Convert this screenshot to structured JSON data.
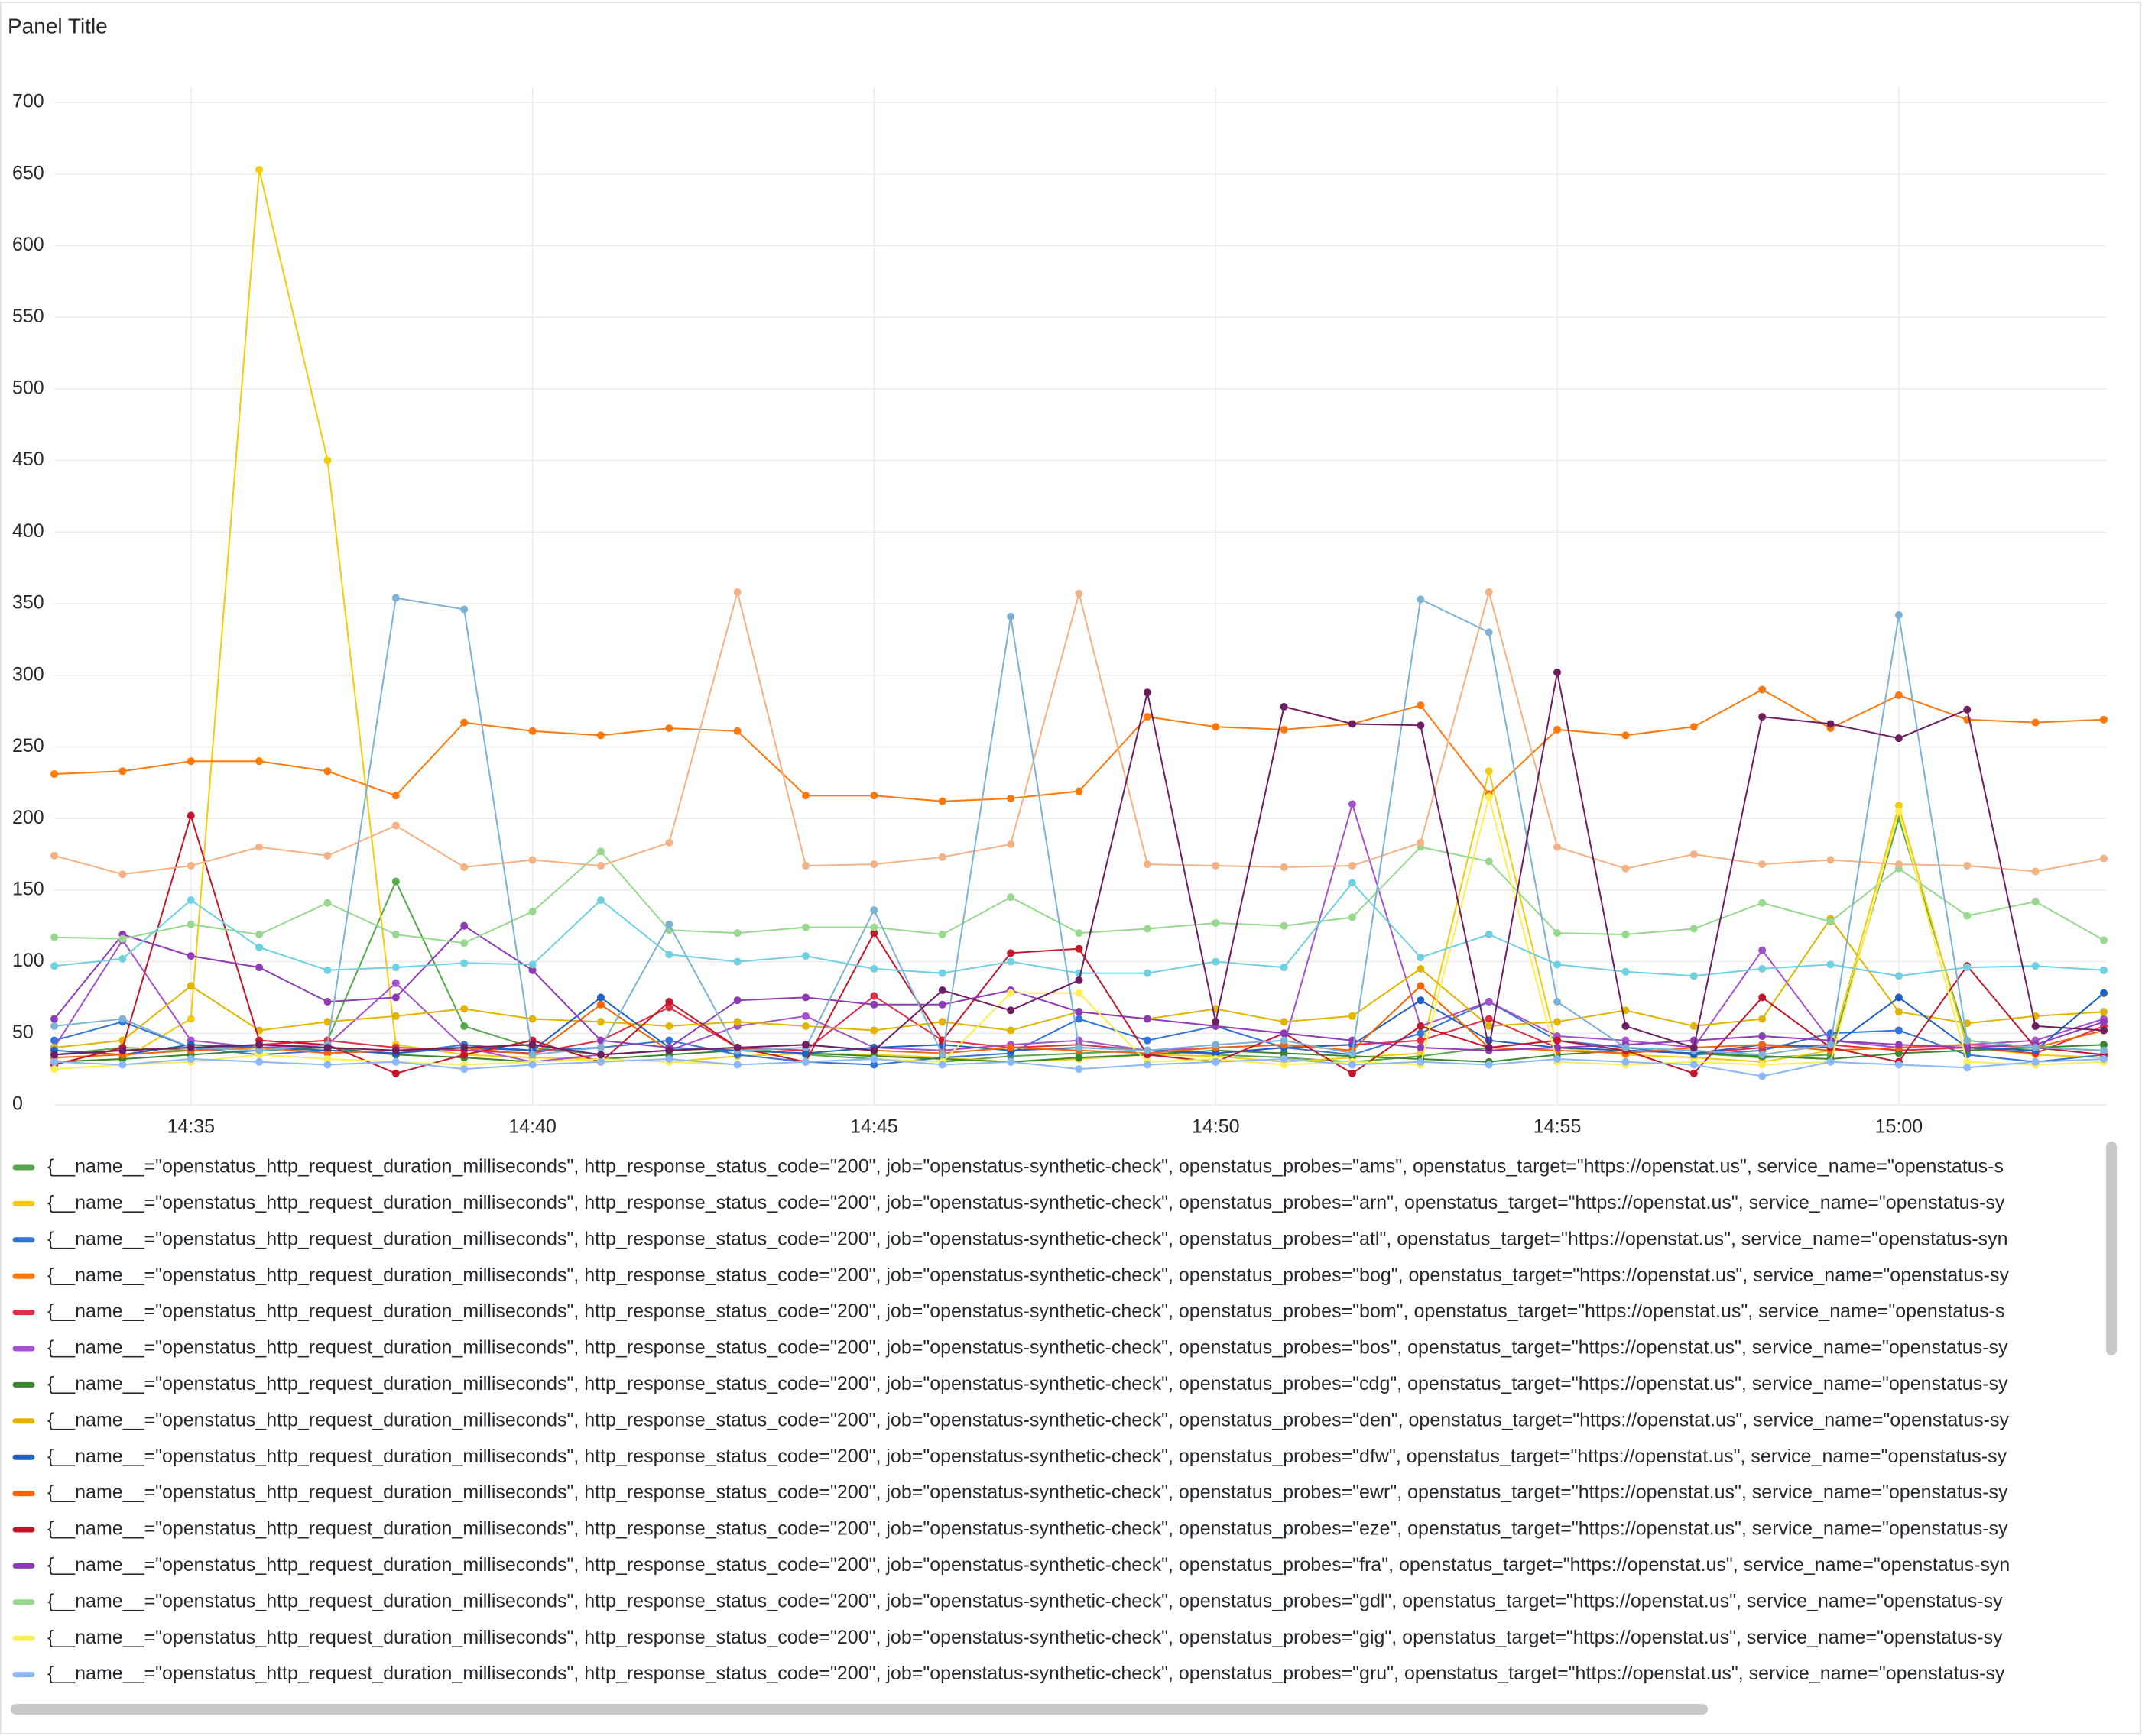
{
  "chart_data": {
    "type": "line",
    "title": "Panel Title",
    "x": [
      "14:33",
      "14:34",
      "14:35",
      "14:36",
      "14:37",
      "14:38",
      "14:39",
      "14:40",
      "14:41",
      "14:42",
      "14:43",
      "14:44",
      "14:45",
      "14:46",
      "14:47",
      "14:48",
      "14:49",
      "14:50",
      "14:51",
      "14:52",
      "14:53",
      "14:54",
      "14:55",
      "14:56",
      "14:57",
      "14:58",
      "14:59",
      "15:00",
      "15:01",
      "15:02",
      "15:03"
    ],
    "xticks": [
      "14:35",
      "14:40",
      "14:45",
      "14:50",
      "14:55",
      "15:00"
    ],
    "ylim": [
      0,
      700
    ],
    "yticks": [
      0,
      50,
      100,
      150,
      200,
      250,
      300,
      350,
      400,
      450,
      500,
      550,
      600,
      650,
      700
    ],
    "grid": true,
    "legend": "bottom",
    "series": [
      {
        "name": "{__name__=\"openstatus_http_request_duration_milliseconds\", http_response_status_code=\"200\", job=\"openstatus-synthetic-check\", openstatus_probes=\"ams\", openstatus_target=\"https://openstat.us\", service_name=\"openstatus-s",
        "color": "#56A64B",
        "values": [
          35,
          40,
          38,
          42,
          45,
          156,
          55,
          40,
          35,
          38,
          40,
          35,
          32,
          30,
          34,
          36,
          38,
          35,
          33,
          30,
          34,
          40,
          45,
          38,
          36,
          33,
          35,
          200,
          45,
          40,
          38
        ]
      },
      {
        "name": "{__name__=\"openstatus_http_request_duration_milliseconds\", http_response_status_code=\"200\", job=\"openstatus-synthetic-check\", openstatus_probes=\"arn\", openstatus_target=\"https://openstat.us\", service_name=\"openstatus-sy",
        "color": "#F2CC0C",
        "values": [
          30,
          32,
          60,
          653,
          450,
          42,
          35,
          33,
          32,
          30,
          34,
          36,
          35,
          33,
          30,
          32,
          35,
          34,
          30,
          33,
          36,
          233,
          40,
          35,
          33,
          30,
          38,
          209,
          40,
          35,
          33
        ]
      },
      {
        "name": "{__name__=\"openstatus_http_request_duration_milliseconds\", http_response_status_code=\"200\", job=\"openstatus-synthetic-check\", openstatus_probes=\"atl\", openstatus_target=\"https://openstat.us\", service_name=\"openstatus-syn",
        "color": "#3274D9",
        "values": [
          45,
          58,
          40,
          35,
          38,
          36,
          42,
          38,
          40,
          45,
          35,
          30,
          28,
          33,
          36,
          60,
          45,
          55,
          40,
          35,
          50,
          72,
          45,
          40,
          35,
          38,
          50,
          52,
          35,
          30,
          35
        ]
      },
      {
        "name": "{__name__=\"openstatus_http_request_duration_milliseconds\", http_response_status_code=\"200\", job=\"openstatus-synthetic-check\", openstatus_probes=\"bog\", openstatus_target=\"https://openstat.us\", service_name=\"openstatus-sy",
        "color": "#FF780A",
        "values": [
          231,
          233,
          240,
          240,
          233,
          216,
          267,
          261,
          258,
          263,
          261,
          216,
          216,
          212,
          214,
          219,
          271,
          264,
          262,
          266,
          279,
          217,
          262,
          258,
          264,
          290,
          263,
          286,
          269,
          267,
          269
        ]
      },
      {
        "name": "{__name__=\"openstatus_http_request_duration_milliseconds\", http_response_status_code=\"200\", job=\"openstatus-synthetic-check\", openstatus_probes=\"bom\", openstatus_target=\"https://openstat.us\", service_name=\"openstatus-s",
        "color": "#E02F44",
        "values": [
          35,
          38,
          40,
          42,
          45,
          40,
          38,
          36,
          45,
          68,
          40,
          38,
          76,
          45,
          40,
          42,
          38,
          36,
          40,
          42,
          45,
          60,
          40,
          38,
          36,
          40,
          42,
          38,
          40,
          36,
          55
        ]
      },
      {
        "name": "{__name__=\"openstatus_http_request_duration_milliseconds\", http_response_status_code=\"200\", job=\"openstatus-synthetic-check\", openstatus_probes=\"bos\", openstatus_target=\"https://openstat.us\", service_name=\"openstatus-sy",
        "color": "#A352CC",
        "values": [
          40,
          115,
          45,
          40,
          42,
          85,
          40,
          30,
          35,
          38,
          55,
          62,
          40,
          38,
          42,
          45,
          38,
          40,
          42,
          210,
          55,
          72,
          48,
          45,
          40,
          108,
          45,
          40,
          42,
          45,
          60
        ]
      },
      {
        "name": "{__name__=\"openstatus_http_request_duration_milliseconds\", http_response_status_code=\"200\", job=\"openstatus-synthetic-check\", openstatus_probes=\"cdg\", openstatus_target=\"https://openstat.us\", service_name=\"openstatus-sy",
        "color": "#37872D",
        "values": [
          30,
          32,
          35,
          38,
          40,
          35,
          33,
          30,
          32,
          35,
          38,
          36,
          34,
          32,
          30,
          33,
          35,
          38,
          36,
          34,
          32,
          30,
          35,
          38,
          36,
          34,
          32,
          36,
          38,
          40,
          42
        ]
      },
      {
        "name": "{__name__=\"openstatus_http_request_duration_milliseconds\", http_response_status_code=\"200\", job=\"openstatus-synthetic-check\", openstatus_probes=\"den\", openstatus_target=\"https://openstat.us\", service_name=\"openstatus-sy",
        "color": "#E0B400",
        "values": [
          40,
          45,
          83,
          52,
          58,
          62,
          67,
          60,
          58,
          55,
          58,
          55,
          52,
          58,
          52,
          65,
          60,
          67,
          58,
          62,
          95,
          55,
          58,
          66,
          55,
          60,
          130,
          65,
          57,
          62,
          65
        ]
      },
      {
        "name": "{__name__=\"openstatus_http_request_duration_milliseconds\", http_response_status_code=\"200\", job=\"openstatus-synthetic-check\", openstatus_probes=\"dfw\", openstatus_target=\"https://openstat.us\", service_name=\"openstatus-sy",
        "color": "#1F60C4",
        "values": [
          38,
          35,
          42,
          40,
          38,
          36,
          40,
          38,
          75,
          40,
          38,
          36,
          40,
          42,
          38,
          40,
          38,
          36,
          40,
          42,
          73,
          45,
          40,
          38,
          36,
          42,
          40,
          75,
          40,
          38,
          78
        ]
      },
      {
        "name": "{__name__=\"openstatus_http_request_duration_milliseconds\", http_response_status_code=\"200\", job=\"openstatus-synthetic-check\", openstatus_probes=\"ewr\", openstatus_target=\"https://openstat.us\", service_name=\"openstatus-sy",
        "color": "#FA6400",
        "values": [
          33,
          35,
          38,
          40,
          36,
          38,
          40,
          35,
          70,
          38,
          40,
          42,
          38,
          36,
          40,
          38,
          36,
          40,
          42,
          38,
          83,
          40,
          38,
          36,
          40,
          42,
          38,
          40,
          42,
          40,
          52
        ]
      },
      {
        "name": "{__name__=\"openstatus_http_request_duration_milliseconds\", http_response_status_code=\"200\", job=\"openstatus-synthetic-check\", openstatus_probes=\"eze\", openstatus_target=\"https://openstat.us\", service_name=\"openstatus-sy",
        "color": "#C4162A",
        "values": [
          28,
          40,
          202,
          45,
          42,
          22,
          35,
          45,
          30,
          72,
          40,
          30,
          120,
          45,
          106,
          109,
          35,
          30,
          50,
          22,
          55,
          40,
          45,
          38,
          22,
          75,
          40,
          30,
          97,
          40,
          35
        ]
      },
      {
        "name": "{__name__=\"openstatus_http_request_duration_milliseconds\", http_response_status_code=\"200\", job=\"openstatus-synthetic-check\", openstatus_probes=\"fra\", openstatus_target=\"https://openstat.us\", service_name=\"openstatus-syn",
        "color": "#8F3BB8",
        "values": [
          60,
          119,
          104,
          96,
          72,
          75,
          125,
          94,
          45,
          40,
          73,
          75,
          70,
          70,
          80,
          65,
          60,
          55,
          50,
          45,
          40,
          38,
          40,
          42,
          45,
          48,
          45,
          42,
          40,
          42,
          58
        ]
      },
      {
        "name": "{__name__=\"openstatus_http_request_duration_milliseconds\", http_response_status_code=\"200\", job=\"openstatus-synthetic-check\", openstatus_probes=\"gdl\", openstatus_target=\"https://openstat.us\", service_name=\"openstatus-sy",
        "color": "#96D98D",
        "values": [
          117,
          116,
          126,
          119,
          141,
          119,
          113,
          135,
          177,
          122,
          120,
          124,
          124,
          119,
          145,
          120,
          123,
          127,
          125,
          131,
          180,
          170,
          120,
          119,
          123,
          141,
          128,
          165,
          132,
          142,
          115
        ]
      },
      {
        "name": "{__name__=\"openstatus_http_request_duration_milliseconds\", http_response_status_code=\"200\", job=\"openstatus-synthetic-check\", openstatus_probes=\"gig\", openstatus_target=\"https://openstat.us\", service_name=\"openstatus-sy",
        "color": "#FFEE52",
        "values": [
          25,
          28,
          30,
          35,
          32,
          30,
          28,
          30,
          32,
          30,
          28,
          30,
          32,
          30,
          78,
          78,
          30,
          32,
          28,
          30,
          28,
          215,
          30,
          28,
          30,
          28,
          30,
          205,
          30,
          28,
          30
        ]
      },
      {
        "name": "{__name__=\"openstatus_http_request_duration_milliseconds\", http_response_status_code=\"200\", job=\"openstatus-synthetic-check\", openstatus_probes=\"gru\", openstatus_target=\"https://openstat.us\", service_name=\"openstatus-sy",
        "color": "#8AB8FF",
        "values": [
          30,
          28,
          32,
          30,
          28,
          30,
          25,
          28,
          30,
          32,
          28,
          30,
          32,
          28,
          30,
          25,
          28,
          30,
          32,
          28,
          30,
          28,
          32,
          30,
          28,
          20,
          30,
          28,
          26,
          30,
          32
        ]
      },
      {
        "color": "#F4B183",
        "values": [
          174,
          161,
          167,
          180,
          174,
          195,
          166,
          171,
          167,
          183,
          358,
          167,
          168,
          173,
          182,
          357,
          168,
          167,
          166,
          167,
          183,
          358,
          180,
          165,
          175,
          168,
          171,
          168,
          167,
          163,
          172
        ]
      },
      {
        "color": "#6ED0E0",
        "values": [
          97,
          102,
          143,
          110,
          94,
          96,
          99,
          98,
          143,
          105,
          100,
          104,
          95,
          92,
          100,
          92,
          92,
          100,
          96,
          155,
          103,
          119,
          98,
          93,
          90,
          95,
          98,
          90,
          96,
          97,
          94
        ]
      },
      {
        "color": "#7EB2D4",
        "values": [
          55,
          60,
          40,
          38,
          42,
          354,
          346,
          35,
          40,
          126,
          38,
          40,
          136,
          35,
          341,
          40,
          38,
          42,
          45,
          36,
          353,
          330,
          72,
          40,
          38,
          35,
          42,
          342,
          45,
          40,
          38
        ]
      },
      {
        "color": "#6D1F62",
        "values": [
          35,
          38,
          40,
          42,
          40,
          38,
          40,
          42,
          35,
          38,
          40,
          42,
          38,
          80,
          66,
          87,
          288,
          58,
          278,
          266,
          265,
          40,
          302,
          55,
          40,
          271,
          266,
          256,
          276,
          55,
          52
        ]
      }
    ]
  }
}
